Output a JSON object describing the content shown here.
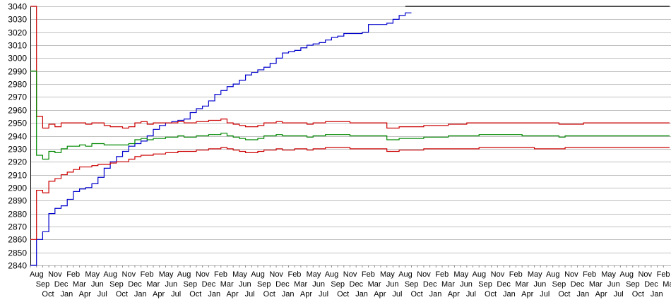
{
  "chart_data": {
    "type": "line",
    "title": "",
    "xlabel": "",
    "ylabel": "",
    "ylim": [
      2840,
      3040
    ],
    "yticks": [
      2840,
      2850,
      2860,
      2870,
      2880,
      2890,
      2900,
      2910,
      2920,
      2930,
      2940,
      2950,
      2960,
      2970,
      2980,
      2990,
      3000,
      3010,
      3020,
      3030,
      3040
    ],
    "grid": true,
    "legend": "none",
    "month_cycle": [
      "Aug",
      "Sep",
      "Oct",
      "Nov",
      "Dec",
      "Jan",
      "Feb",
      "Mar",
      "Apr",
      "May",
      "Jun",
      "Jul"
    ],
    "category_count": 104,
    "series": [
      {
        "color": "#0000cc",
        "values": [
          2840,
          2860,
          2866,
          2880,
          2884,
          2886,
          2891,
          2897,
          2899,
          2900,
          2903,
          2908,
          2915,
          2920,
          2924,
          2928,
          2932,
          2934,
          2936,
          2940,
          2945,
          2948,
          2950,
          2951,
          2952,
          2953,
          2958,
          2961,
          2963,
          2967,
          2972,
          2975,
          2978,
          2980,
          2983,
          2987,
          2989,
          2991,
          2993,
          2996,
          3000,
          3004,
          3005,
          3006,
          3008,
          3010,
          3011,
          3012,
          3014,
          3016,
          3017,
          3019,
          3019,
          3019,
          3020,
          3026,
          3026,
          3026,
          3027,
          3030,
          3033,
          3035
        ]
      },
      {
        "color": "#000000",
        "start_index": 61,
        "values": [
          3040,
          3040,
          3040,
          3040,
          3040,
          3040,
          3040,
          3040,
          3040,
          3040,
          3040,
          3040,
          3040,
          3040,
          3040,
          3040,
          3040,
          3040,
          3040,
          3040,
          3040,
          3040,
          3040,
          3040,
          3040,
          3040,
          3040,
          3040,
          3040,
          3040,
          3040,
          3040,
          3040,
          3040,
          3040,
          3040,
          3040,
          3040,
          3040,
          3040,
          3040,
          3040,
          3040
        ]
      },
      {
        "color": "#cc0000",
        "values": [
          3040,
          2955,
          2946,
          2949,
          2947,
          2950,
          2950,
          2950,
          2950,
          2949,
          2950,
          2950,
          2948,
          2947,
          2947,
          2946,
          2947,
          2950,
          2951,
          2949,
          2950,
          2950,
          2950,
          2950,
          2951,
          2950,
          2950,
          2951,
          2951,
          2952,
          2952,
          2953,
          2950,
          2949,
          2948,
          2947,
          2947,
          2948,
          2950,
          2950,
          2951,
          2950,
          2950,
          2950,
          2950,
          2949,
          2950,
          2950,
          2951,
          2951,
          2951,
          2951,
          2950,
          2950,
          2950,
          2950,
          2950,
          2950,
          2946,
          2946,
          2947,
          2947,
          2947,
          2947,
          2948,
          2948,
          2948,
          2948,
          2949,
          2949,
          2949,
          2950,
          2950,
          2950,
          2950,
          2950,
          2950,
          2950,
          2950,
          2950,
          2950,
          2950,
          2950,
          2950,
          2950,
          2950,
          2949,
          2949,
          2949,
          2949,
          2950,
          2950,
          2950,
          2950,
          2950,
          2950,
          2950,
          2950,
          2950,
          2950,
          2950,
          2950,
          2950,
          2950
        ]
      },
      {
        "color": "#008800",
        "values": [
          2990,
          2925,
          2922,
          2928,
          2927,
          2930,
          2932,
          2932,
          2933,
          2932,
          2934,
          2934,
          2933,
          2933,
          2933,
          2933,
          2934,
          2937,
          2938,
          2937,
          2938,
          2938,
          2939,
          2939,
          2940,
          2939,
          2939,
          2940,
          2940,
          2941,
          2941,
          2942,
          2940,
          2939,
          2938,
          2937,
          2937,
          2938,
          2940,
          2940,
          2941,
          2940,
          2940,
          2940,
          2940,
          2939,
          2940,
          2940,
          2941,
          2941,
          2941,
          2941,
          2940,
          2940,
          2940,
          2940,
          2940,
          2940,
          2937,
          2937,
          2938,
          2938,
          2938,
          2938,
          2939,
          2939,
          2939,
          2939,
          2940,
          2940,
          2940,
          2940,
          2940,
          2941,
          2941,
          2941,
          2941,
          2941,
          2941,
          2941,
          2940,
          2940,
          2940,
          2940,
          2940,
          2940,
          2939,
          2940,
          2940,
          2940,
          2940,
          2940,
          2940,
          2940,
          2940,
          2940,
          2940,
          2940,
          2940,
          2940,
          2940,
          2940,
          2940,
          2940
        ]
      },
      {
        "color": "#cc0000",
        "values": [
          2860,
          2898,
          2896,
          2905,
          2907,
          2910,
          2912,
          2914,
          2916,
          2916,
          2917,
          2918,
          2918,
          2919,
          2920,
          2920,
          2922,
          2924,
          2925,
          2925,
          2926,
          2926,
          2927,
          2927,
          2928,
          2928,
          2928,
          2929,
          2929,
          2930,
          2930,
          2931,
          2930,
          2929,
          2928,
          2927,
          2927,
          2928,
          2929,
          2929,
          2930,
          2929,
          2929,
          2930,
          2930,
          2929,
          2930,
          2930,
          2931,
          2931,
          2931,
          2931,
          2930,
          2930,
          2930,
          2930,
          2930,
          2930,
          2928,
          2928,
          2929,
          2929,
          2929,
          2929,
          2930,
          2930,
          2930,
          2930,
          2930,
          2930,
          2930,
          2930,
          2930,
          2931,
          2931,
          2931,
          2931,
          2931,
          2931,
          2931,
          2931,
          2931,
          2930,
          2930,
          2930,
          2930,
          2930,
          2931,
          2931,
          2931,
          2931,
          2931,
          2931,
          2931,
          2931,
          2931,
          2931,
          2931,
          2931,
          2931,
          2931,
          2931,
          2931,
          2931
        ]
      }
    ]
  }
}
